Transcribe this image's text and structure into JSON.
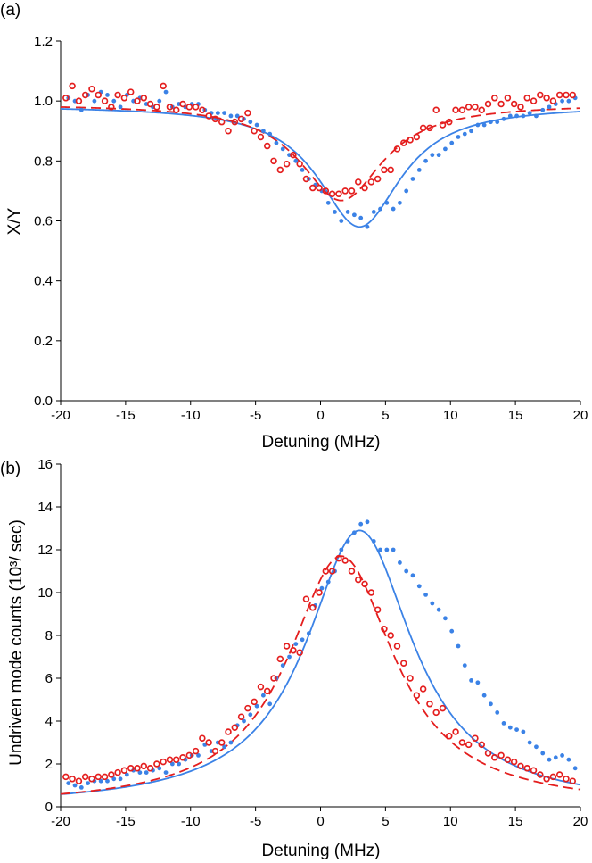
{
  "colors": {
    "blue": "#3b82e6",
    "red": "#e41e1e"
  },
  "chart_data": [
    {
      "type": "scatter",
      "panel_label": "(a)",
      "xlabel": "Detuning (MHz)",
      "ylabel": "X/Y",
      "xlim": [
        -20,
        20
      ],
      "ylim": [
        0,
        1.2
      ],
      "xticks": [
        "-20",
        "-15",
        "-10",
        "-5",
        "0",
        "5",
        "10",
        "15",
        "20"
      ],
      "yticks": [
        "0.0",
        "0.2",
        "0.4",
        "0.6",
        "0.8",
        "1.0",
        "1.2"
      ],
      "series": [
        {
          "name": "blue-dots",
          "marker": "filled-dot",
          "color": "#3b82e6",
          "x": [
            -19.4,
            -18.9,
            -18.4,
            -17.9,
            -17.4,
            -16.9,
            -16.4,
            -15.9,
            -15.4,
            -14.9,
            -14.4,
            -13.9,
            -13.4,
            -12.9,
            -12.4,
            -11.9,
            -11.4,
            -10.9,
            -10.4,
            -9.9,
            -9.4,
            -8.9,
            -8.4,
            -7.9,
            -7.4,
            -6.9,
            -6.4,
            -5.9,
            -5.4,
            -4.9,
            -4.4,
            -3.9,
            -3.4,
            -2.9,
            -2.4,
            -1.9,
            -1.4,
            -0.9,
            -0.4,
            0.1,
            0.6,
            1.1,
            1.6,
            2.1,
            2.6,
            3.1,
            3.6,
            4.1,
            4.6,
            5.1,
            5.6,
            6.1,
            6.6,
            7.1,
            7.6,
            8.1,
            8.6,
            9.1,
            9.6,
            10.1,
            10.6,
            11.1,
            11.6,
            12.1,
            12.6,
            13.1,
            13.6,
            14.1,
            14.6,
            15.1,
            15.6,
            16.1,
            16.6,
            17.1,
            17.6,
            18.1,
            18.6,
            19.1,
            19.6
          ],
          "y": [
            1.01,
            1.0,
            0.97,
            1.02,
            1.0,
            1.03,
            1.02,
            1.0,
            0.98,
            1.02,
            1.0,
            1.01,
            0.99,
            0.98,
            1.0,
            1.03,
            0.98,
            0.99,
            0.98,
            0.99,
            0.99,
            0.97,
            0.96,
            0.96,
            0.96,
            0.95,
            0.95,
            0.94,
            0.93,
            0.92,
            0.9,
            0.89,
            0.86,
            0.84,
            0.82,
            0.8,
            0.77,
            0.74,
            0.72,
            0.7,
            0.66,
            0.63,
            0.6,
            0.63,
            0.62,
            0.61,
            0.58,
            0.63,
            0.64,
            0.66,
            0.64,
            0.66,
            0.7,
            0.74,
            0.77,
            0.8,
            0.82,
            0.82,
            0.84,
            0.86,
            0.88,
            0.89,
            0.9,
            0.92,
            0.92,
            0.93,
            0.93,
            0.94,
            0.95,
            0.95,
            0.95,
            0.96,
            0.95,
            0.97,
            0.98,
            0.99,
            1.0,
            1.0,
            1.01
          ]
        },
        {
          "name": "red-circles",
          "marker": "open-circle",
          "color": "#e41e1e",
          "x": [
            -19.6,
            -19.1,
            -18.6,
            -18.1,
            -17.6,
            -17.1,
            -16.6,
            -16.1,
            -15.6,
            -15.1,
            -14.6,
            -14.1,
            -13.6,
            -13.1,
            -12.6,
            -12.1,
            -11.6,
            -11.1,
            -10.6,
            -10.1,
            -9.6,
            -9.1,
            -8.6,
            -8.1,
            -7.6,
            -7.1,
            -6.6,
            -6.1,
            -5.6,
            -5.1,
            -4.6,
            -4.1,
            -3.6,
            -3.1,
            -2.6,
            -2.1,
            -1.6,
            -1.1,
            -0.6,
            -0.1,
            0.4,
            0.9,
            1.4,
            1.9,
            2.4,
            2.9,
            3.4,
            3.9,
            4.4,
            4.9,
            5.4,
            5.9,
            6.4,
            6.9,
            7.4,
            7.9,
            8.4,
            8.9,
            9.4,
            9.9,
            10.4,
            10.9,
            11.4,
            11.9,
            12.4,
            12.9,
            13.4,
            13.9,
            14.4,
            14.9,
            15.4,
            15.9,
            16.4,
            16.9,
            17.4,
            17.9,
            18.4,
            18.9,
            19.4
          ],
          "y": [
            1.01,
            1.05,
            1.0,
            1.02,
            1.04,
            1.02,
            1.0,
            0.98,
            1.02,
            1.01,
            1.03,
            1.0,
            1.01,
            0.99,
            0.98,
            1.05,
            0.98,
            0.97,
            0.99,
            0.98,
            0.98,
            0.97,
            0.95,
            0.94,
            0.93,
            0.9,
            0.93,
            0.94,
            0.96,
            0.9,
            0.88,
            0.85,
            0.8,
            0.77,
            0.79,
            0.82,
            0.79,
            0.74,
            0.71,
            0.71,
            0.7,
            0.69,
            0.69,
            0.7,
            0.7,
            0.73,
            0.71,
            0.73,
            0.74,
            0.77,
            0.77,
            0.84,
            0.86,
            0.87,
            0.88,
            0.91,
            0.91,
            0.97,
            0.92,
            0.93,
            0.97,
            0.97,
            0.98,
            0.98,
            0.97,
            0.99,
            1.01,
            0.99,
            1.01,
            0.99,
            0.98,
            1.01,
            1.0,
            1.02,
            1.01,
            1.0,
            1.02,
            1.02,
            1.02
          ]
        },
        {
          "name": "blue-fit",
          "style": "solid",
          "color": "#3b82e6",
          "model": "dip",
          "base": 0.985,
          "depth": 0.405,
          "center": 3.0,
          "hwhm": 3.9
        },
        {
          "name": "red-fit",
          "style": "dashed",
          "color": "#e41e1e",
          "model": "dip",
          "base": 0.99,
          "depth": 0.322,
          "center": 1.6,
          "hwhm": 3.9
        }
      ]
    },
    {
      "type": "scatter",
      "panel_label": "(b)",
      "xlabel": "Detuning (MHz)",
      "ylabel": "Undriven mode counts (10³/ sec)",
      "xlim": [
        -20,
        20
      ],
      "ylim": [
        0,
        16
      ],
      "xticks": [
        "-20",
        "-15",
        "-10",
        "-5",
        "0",
        "5",
        "10",
        "15",
        "20"
      ],
      "yticks": [
        "0",
        "2",
        "4",
        "6",
        "8",
        "10",
        "12",
        "14",
        "16"
      ],
      "series": [
        {
          "name": "blue-dots",
          "marker": "filled-dot",
          "color": "#3b82e6",
          "x": [
            -19.4,
            -18.9,
            -18.4,
            -17.9,
            -17.4,
            -16.9,
            -16.4,
            -15.9,
            -15.4,
            -14.9,
            -14.4,
            -13.9,
            -13.4,
            -12.9,
            -12.4,
            -11.9,
            -11.4,
            -10.9,
            -10.4,
            -9.9,
            -9.4,
            -8.9,
            -8.4,
            -7.9,
            -7.4,
            -6.9,
            -6.4,
            -5.9,
            -5.4,
            -4.9,
            -4.4,
            -3.9,
            -3.4,
            -2.9,
            -2.4,
            -1.9,
            -1.4,
            -0.9,
            -0.4,
            0.1,
            0.6,
            1.1,
            1.6,
            2.1,
            2.6,
            3.1,
            3.6,
            4.1,
            4.6,
            5.1,
            5.6,
            6.1,
            6.6,
            7.1,
            7.6,
            8.1,
            8.6,
            9.1,
            9.6,
            10.1,
            10.6,
            11.1,
            11.6,
            12.1,
            12.6,
            13.1,
            13.6,
            14.1,
            14.6,
            15.1,
            15.6,
            16.1,
            16.6,
            17.1,
            17.6,
            18.1,
            18.6,
            19.1,
            19.6
          ],
          "y": [
            1.1,
            1.0,
            0.9,
            1.1,
            1.2,
            1.2,
            1.2,
            1.3,
            1.3,
            1.5,
            1.7,
            1.6,
            1.6,
            1.7,
            1.8,
            1.6,
            2.0,
            2.0,
            2.2,
            2.4,
            2.4,
            2.9,
            2.6,
            3.0,
            2.8,
            3.0,
            3.8,
            4.0,
            4.3,
            4.7,
            5.2,
            4.8,
            6.0,
            6.6,
            7.0,
            7.6,
            7.8,
            8.1,
            9.4,
            10.2,
            10.5,
            11.0,
            12.0,
            12.4,
            12.8,
            13.2,
            13.3,
            12.4,
            12.0,
            12.0,
            12.0,
            11.4,
            11.0,
            10.8,
            10.3,
            9.9,
            9.5,
            9.2,
            8.8,
            8.2,
            7.5,
            6.6,
            5.9,
            5.8,
            5.2,
            4.8,
            4.4,
            3.9,
            3.7,
            3.6,
            3.5,
            3.0,
            2.8,
            2.5,
            2.2,
            2.3,
            2.4,
            2.2,
            1.8
          ]
        },
        {
          "name": "red-circles",
          "marker": "open-circle",
          "color": "#e41e1e",
          "x": [
            -19.6,
            -19.1,
            -18.6,
            -18.1,
            -17.6,
            -17.1,
            -16.6,
            -16.1,
            -15.6,
            -15.1,
            -14.6,
            -14.1,
            -13.6,
            -13.1,
            -12.6,
            -12.1,
            -11.6,
            -11.1,
            -10.6,
            -10.1,
            -9.6,
            -9.1,
            -8.6,
            -8.1,
            -7.6,
            -7.1,
            -6.6,
            -6.1,
            -5.6,
            -5.1,
            -4.6,
            -4.1,
            -3.6,
            -3.1,
            -2.6,
            -2.1,
            -1.6,
            -1.1,
            -0.6,
            -0.1,
            0.4,
            0.9,
            1.4,
            1.9,
            2.4,
            2.9,
            3.4,
            3.9,
            4.4,
            4.9,
            5.4,
            5.9,
            6.4,
            6.9,
            7.4,
            7.9,
            8.4,
            8.9,
            9.4,
            9.9,
            10.4,
            10.9,
            11.4,
            11.9,
            12.4,
            12.9,
            13.4,
            13.9,
            14.4,
            14.9,
            15.4,
            15.9,
            16.4,
            16.9,
            17.4,
            17.9,
            18.4,
            18.9,
            19.4
          ],
          "y": [
            1.4,
            1.3,
            1.2,
            1.4,
            1.3,
            1.4,
            1.4,
            1.5,
            1.6,
            1.7,
            1.8,
            1.8,
            1.9,
            1.8,
            2.0,
            2.1,
            2.2,
            2.2,
            2.3,
            2.4,
            2.6,
            3.2,
            3.0,
            2.6,
            3.0,
            3.5,
            3.7,
            4.2,
            4.6,
            4.9,
            5.6,
            5.4,
            6.0,
            6.9,
            7.5,
            7.3,
            7.2,
            9.7,
            9.3,
            10.0,
            11.0,
            11.0,
            11.6,
            11.5,
            11.0,
            10.6,
            10.4,
            10.0,
            9.2,
            8.3,
            8.0,
            7.5,
            6.7,
            6.0,
            5.2,
            5.5,
            4.8,
            4.4,
            4.6,
            3.3,
            3.5,
            3.0,
            2.9,
            3.2,
            2.9,
            2.5,
            2.3,
            2.4,
            2.2,
            2.1,
            1.9,
            1.8,
            1.7,
            1.5,
            1.3,
            1.4,
            1.5,
            1.3,
            1.2
          ]
        },
        {
          "name": "blue-fit",
          "style": "solid",
          "color": "#3b82e6",
          "model": "peak",
          "amp": 12.9,
          "center": 3.0,
          "hwhm": 5.0
        },
        {
          "name": "red-fit",
          "style": "dashed",
          "color": "#e41e1e",
          "model": "peak",
          "amp": 11.7,
          "center": 1.6,
          "hwhm": 5.0
        }
      ]
    }
  ]
}
